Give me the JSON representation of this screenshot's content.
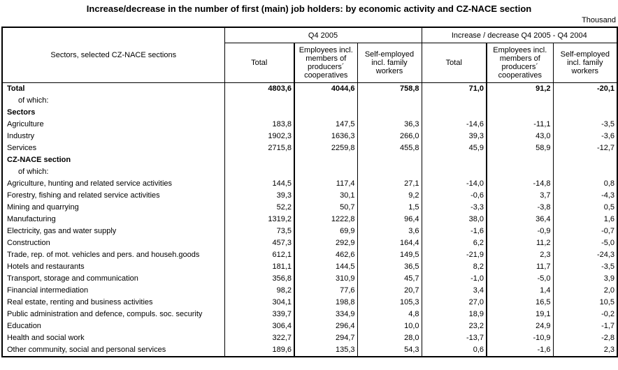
{
  "page": {
    "title": "Increase/decrease in the number of first (main) job holders: by economic activity and CZ-NACE section",
    "unit_label": "Thousand"
  },
  "table": {
    "corner_header": "Sectors, selected CZ-NACE sections",
    "groups": [
      {
        "label": "Q4 2005"
      },
      {
        "label": "Increase / decrease Q4 2005 - Q4 2004"
      }
    ],
    "sub_headers": [
      "Total",
      "Employees incl. members of producers´ cooperatives",
      "Self-employed incl. family workers"
    ],
    "rows": [
      {
        "label": "Total",
        "style": "total",
        "values": [
          "4803,6",
          "4044,6",
          "758,8",
          "71,0",
          "91,2",
          "-20,1"
        ]
      },
      {
        "label": "of which:",
        "style": "indent",
        "values": []
      },
      {
        "label": "Sectors",
        "style": "section",
        "values": []
      },
      {
        "label": "Agriculture",
        "style": "normal",
        "values": [
          "183,8",
          "147,5",
          "36,3",
          "-14,6",
          "-11,1",
          "-3,5"
        ]
      },
      {
        "label": "Industry",
        "style": "normal",
        "values": [
          "1902,3",
          "1636,3",
          "266,0",
          "39,3",
          "43,0",
          "-3,6"
        ]
      },
      {
        "label": "Services",
        "style": "normal",
        "values": [
          "2715,8",
          "2259,8",
          "455,8",
          "45,9",
          "58,9",
          "-12,7"
        ]
      },
      {
        "label": "CZ-NACE section",
        "style": "section",
        "values": []
      },
      {
        "label": "of which:",
        "style": "indent",
        "values": []
      },
      {
        "label": "Agriculture, hunting and related service activities",
        "style": "normal",
        "values": [
          "144,5",
          "117,4",
          "27,1",
          "-14,0",
          "-14,8",
          "0,8"
        ]
      },
      {
        "label": "Forestry, fishing and related service activities",
        "style": "normal",
        "values": [
          "39,3",
          "30,1",
          "9,2",
          "-0,6",
          "3,7",
          "-4,3"
        ]
      },
      {
        "label": "Mining and quarrying",
        "style": "normal",
        "values": [
          "52,2",
          "50,7",
          "1,5",
          "-3,3",
          "-3,8",
          "0,5"
        ]
      },
      {
        "label": "Manufacturing",
        "style": "normal",
        "values": [
          "1319,2",
          "1222,8",
          "96,4",
          "38,0",
          "36,4",
          "1,6"
        ]
      },
      {
        "label": "Electricity, gas and water supply",
        "style": "normal",
        "values": [
          "73,5",
          "69,9",
          "3,6",
          "-1,6",
          "-0,9",
          "-0,7"
        ]
      },
      {
        "label": "Construction",
        "style": "normal",
        "values": [
          "457,3",
          "292,9",
          "164,4",
          "6,2",
          "11,2",
          "-5,0"
        ]
      },
      {
        "label": "Trade, rep. of mot. vehicles and pers. and househ.goods",
        "style": "normal",
        "values": [
          "612,1",
          "462,6",
          "149,5",
          "-21,9",
          "2,3",
          "-24,3"
        ]
      },
      {
        "label": "Hotels and restaurants",
        "style": "normal",
        "values": [
          "181,1",
          "144,5",
          "36,5",
          "8,2",
          "11,7",
          "-3,5"
        ]
      },
      {
        "label": "Transport, storage and communication",
        "style": "normal",
        "values": [
          "356,8",
          "310,9",
          "45,7",
          "-1,0",
          "-5,0",
          "3,9"
        ]
      },
      {
        "label": "Financial intermediation",
        "style": "normal",
        "values": [
          "98,2",
          "77,6",
          "20,7",
          "3,4",
          "1,4",
          "2,0"
        ]
      },
      {
        "label": "Real estate, renting and business activities",
        "style": "normal",
        "values": [
          "304,1",
          "198,8",
          "105,3",
          "27,0",
          "16,5",
          "10,5"
        ]
      },
      {
        "label": "Public administration and defence, compuls. soc. security",
        "style": "normal",
        "values": [
          "339,7",
          "334,9",
          "4,8",
          "18,9",
          "19,1",
          "-0,2"
        ]
      },
      {
        "label": "Education",
        "style": "normal",
        "values": [
          "306,4",
          "296,4",
          "10,0",
          "23,2",
          "24,9",
          "-1,7"
        ]
      },
      {
        "label": "Health and social work",
        "style": "normal",
        "values": [
          "322,7",
          "294,7",
          "28,0",
          "-13,7",
          "-10,9",
          "-2,8"
        ]
      },
      {
        "label": "Other community, social and personal services",
        "style": "normal",
        "values": [
          "189,6",
          "135,3",
          "54,3",
          "0,6",
          "-1,6",
          "2,3"
        ]
      }
    ]
  }
}
